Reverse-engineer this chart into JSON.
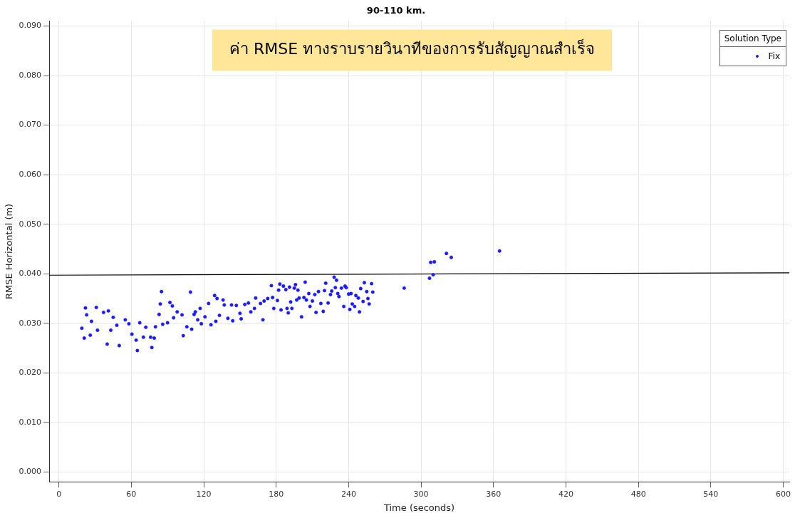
{
  "chart_data": {
    "type": "scatter",
    "title": "90-110 km.",
    "xlabel": "Time (seconds)",
    "ylabel": "RMSE Horizontal (m)",
    "legend_title": "Solution Type",
    "legend": "top right",
    "grid": true,
    "marker": "circle",
    "annotations": [
      "ค่า RMSE ทางราบรายวินาทีของการรับสัญญาณสำเร็จ"
    ],
    "xlim": [
      -8,
      605
    ],
    "xticks": [
      0,
      60,
      120,
      180,
      240,
      300,
      360,
      420,
      480,
      540,
      600
    ],
    "ylim": [
      -0.002,
      0.091
    ],
    "yticks": [
      {
        "value": 0,
        "label": "0.000"
      },
      {
        "value": 0.01,
        "label": "0.010"
      },
      {
        "value": 0.02,
        "label": "0.020"
      },
      {
        "value": 0.03,
        "label": "0.030"
      },
      {
        "value": 0.04,
        "label": "0.040"
      },
      {
        "value": 0.05,
        "label": "0.050"
      },
      {
        "value": 0.06,
        "label": "0.060"
      },
      {
        "value": 0.07,
        "label": "0.070"
      },
      {
        "value": 0.08,
        "label": "0.080"
      },
      {
        "value": 0.09,
        "label": "0.090"
      }
    ],
    "series": [
      {
        "name": "Fix",
        "color": "#1a1aff",
        "x": [
          19,
          21,
          22,
          23,
          26,
          27,
          31,
          32,
          37,
          40,
          41,
          43,
          45,
          48,
          50,
          55,
          58,
          60.5,
          64,
          65,
          67,
          70,
          72,
          76,
          77,
          79,
          80,
          83,
          84,
          85,
          86,
          90,
          92,
          94,
          95,
          98,
          102,
          103,
          106,
          109,
          110,
          112,
          113,
          115,
          117,
          118,
          121,
          124,
          126,
          129,
          130,
          131,
          133,
          136,
          137,
          140,
          143,
          144,
          147,
          150,
          151,
          154,
          157,
          159,
          162,
          163,
          167,
          169,
          170,
          173,
          176,
          177,
          178,
          181,
          182,
          183,
          184,
          186,
          188,
          189,
          190,
          191,
          192,
          193,
          195,
          196,
          197,
          198,
          199,
          201,
          203,
          204,
          205,
          207,
          208,
          210,
          212,
          213,
          215,
          217,
          219,
          220,
          221,
          223,
          225,
          226,
          228,
          229,
          230,
          231,
          232,
          234,
          236,
          237,
          238,
          240,
          241,
          242,
          243,
          245,
          246,
          248,
          249,
          250,
          252,
          253,
          255,
          256,
          257,
          259,
          260,
          286,
          307,
          308,
          310,
          311,
          321,
          325,
          365
        ],
        "values": [
          0.029,
          0.027,
          0.0331,
          0.0317,
          0.0276,
          0.0304,
          0.0332,
          0.0286,
          0.0322,
          0.0258,
          0.0325,
          0.0286,
          0.0312,
          0.0296,
          0.0255,
          0.0307,
          0.0299,
          0.0278,
          0.0266,
          0.0245,
          0.0301,
          0.0272,
          0.0292,
          0.0272,
          0.0251,
          0.027,
          0.0293,
          0.0318,
          0.0339,
          0.0364,
          0.0298,
          0.0301,
          0.0342,
          0.0335,
          0.0311,
          0.0323,
          0.0317,
          0.0275,
          0.0293,
          0.0363,
          0.0288,
          0.0318,
          0.0323,
          0.0307,
          0.033,
          0.0299,
          0.0313,
          0.034,
          0.0297,
          0.0356,
          0.0304,
          0.035,
          0.0316,
          0.0347,
          0.0337,
          0.031,
          0.0337,
          0.0305,
          0.0336,
          0.032,
          0.0309,
          0.0338,
          0.0341,
          0.0323,
          0.033,
          0.0351,
          0.034,
          0.0307,
          0.0345,
          0.035,
          0.0376,
          0.0352,
          0.033,
          0.0346,
          0.0367,
          0.0379,
          0.0327,
          0.0375,
          0.0368,
          0.033,
          0.0321,
          0.0373,
          0.0343,
          0.033,
          0.0371,
          0.0378,
          0.0347,
          0.0367,
          0.0351,
          0.0313,
          0.0352,
          0.0383,
          0.0347,
          0.036,
          0.0334,
          0.0345,
          0.0358,
          0.0322,
          0.0364,
          0.034,
          0.0324,
          0.0366,
          0.0381,
          0.0341,
          0.0358,
          0.0365,
          0.0393,
          0.0372,
          0.0387,
          0.036,
          0.0354,
          0.0371,
          0.0334,
          0.0375,
          0.0372,
          0.0359,
          0.0328,
          0.036,
          0.0339,
          0.0334,
          0.0356,
          0.0351,
          0.0323,
          0.037,
          0.0344,
          0.0382,
          0.0364,
          0.035,
          0.0339,
          0.038,
          0.0363,
          0.0371,
          0.0391,
          0.0423,
          0.0398,
          0.0424,
          0.0441,
          0.0433,
          0.0446
        ]
      },
      {
        "type": "line",
        "color": "#000000",
        "marker": "none",
        "x": [
          -8,
          605
        ],
        "values": [
          0.0397,
          0.0402
        ]
      }
    ]
  }
}
